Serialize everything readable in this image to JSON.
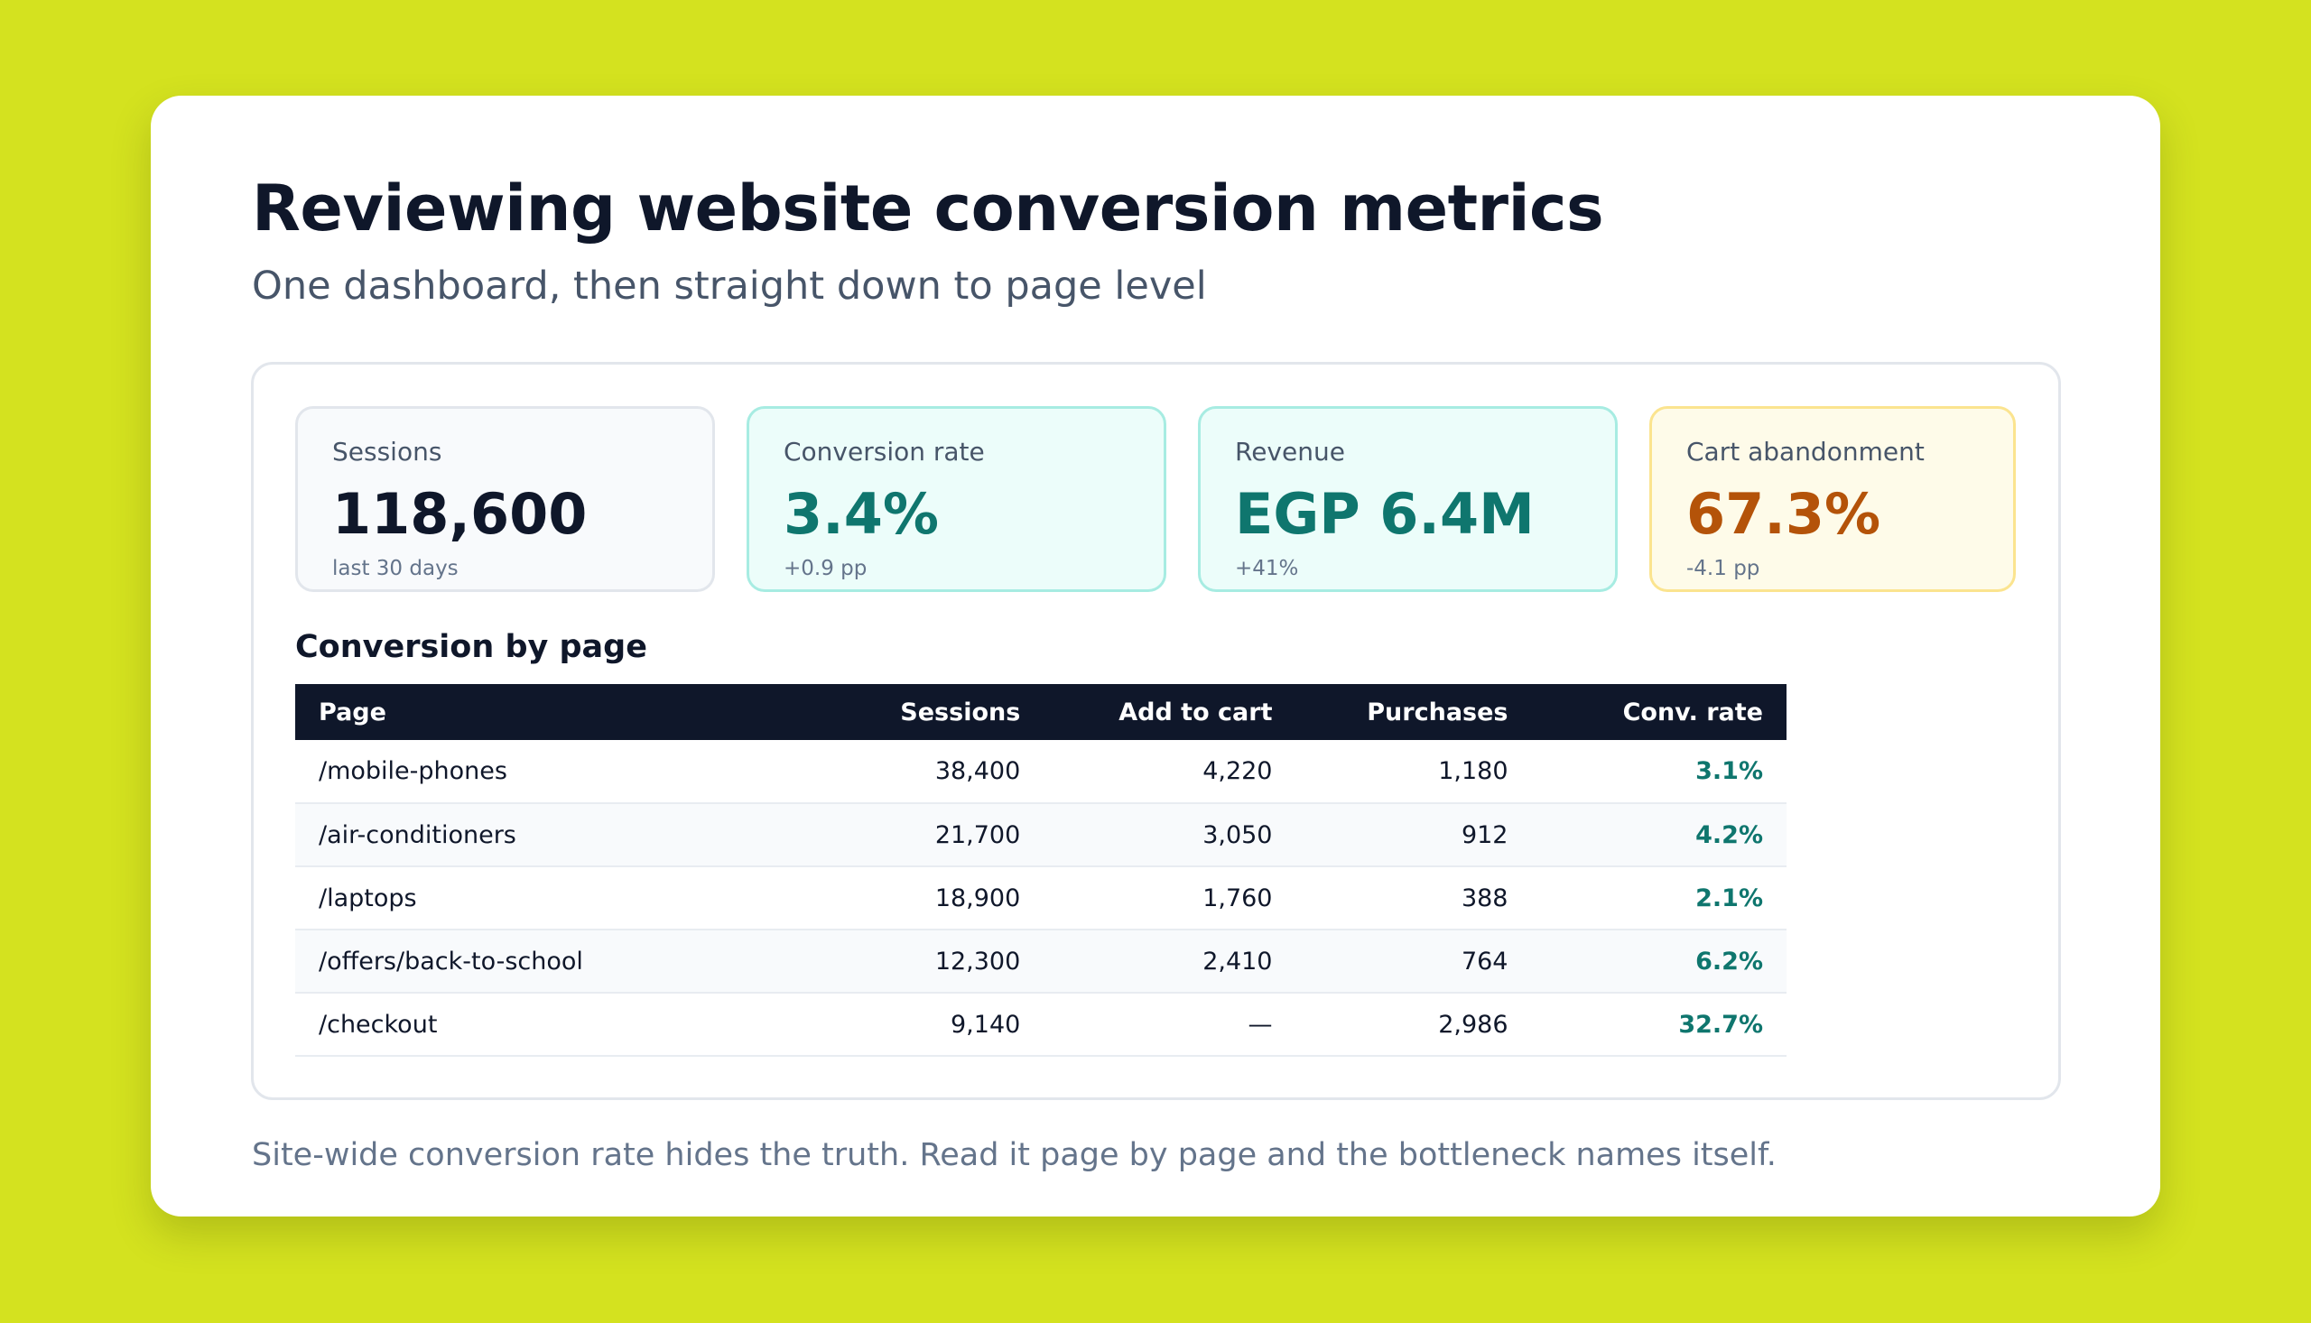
{
  "header": {
    "title": "Reviewing website conversion metrics",
    "subtitle": "One dashboard, then straight down to page level"
  },
  "metrics": [
    {
      "label": "Sessions",
      "value": "118,600",
      "note": "last 30 days"
    },
    {
      "label": "Conversion rate",
      "value": "3.4%",
      "note": "+0.9 pp"
    },
    {
      "label": "Revenue",
      "value": "EGP 6.4M",
      "note": "+41%"
    },
    {
      "label": "Cart abandonment",
      "value": "67.3%",
      "note": "-4.1 pp"
    }
  ],
  "table": {
    "title": "Conversion by page",
    "columns": [
      "Page",
      "Sessions",
      "Add to cart",
      "Purchases",
      "Conv. rate"
    ],
    "rows": [
      {
        "page": "/mobile-phones",
        "sessions": "38,400",
        "add_to_cart": "4,220",
        "purchases": "1,180",
        "conv_rate": "3.1%"
      },
      {
        "page": "/air-conditioners",
        "sessions": "21,700",
        "add_to_cart": "3,050",
        "purchases": "912",
        "conv_rate": "4.2%"
      },
      {
        "page": "/laptops",
        "sessions": "18,900",
        "add_to_cart": "1,760",
        "purchases": "388",
        "conv_rate": "2.1%"
      },
      {
        "page": "/offers/back-to-school",
        "sessions": "12,300",
        "add_to_cart": "2,410",
        "purchases": "764",
        "conv_rate": "6.2%"
      },
      {
        "page": "/checkout",
        "sessions": "9,140",
        "add_to_cart": "—",
        "purchases": "2,986",
        "conv_rate": "32.7%"
      }
    ]
  },
  "footer": {
    "text": "Site-wide conversion rate hides the truth. Read it page by page and the bottleneck names itself."
  },
  "colors": {
    "background": "#d4e21f",
    "accent_teal": "#0f766e",
    "accent_amber": "#b45309",
    "table_header": "#0f172a"
  }
}
